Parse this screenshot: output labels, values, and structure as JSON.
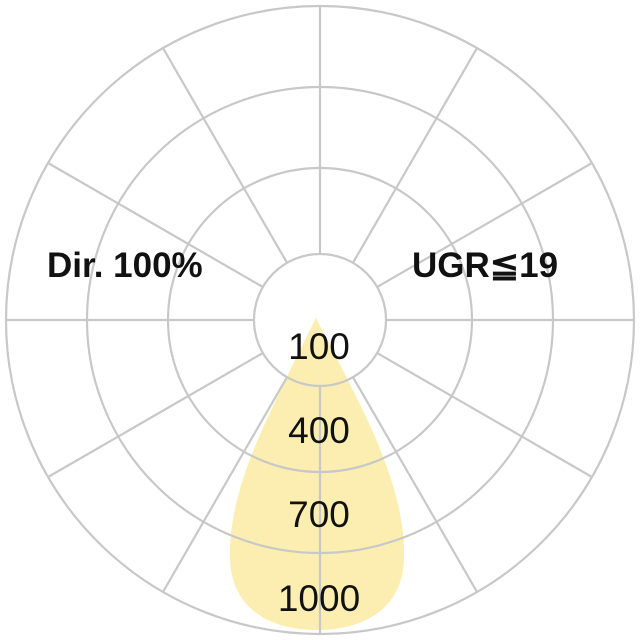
{
  "diagram": {
    "left_label": "Dir. 100%",
    "right_label": "UGR≦19",
    "ring_labels": [
      "100",
      "400",
      "700",
      "1000"
    ],
    "colors": {
      "grid": "#c8c8c8",
      "beam": "#fbeeb0",
      "text": "#111111"
    }
  }
}
